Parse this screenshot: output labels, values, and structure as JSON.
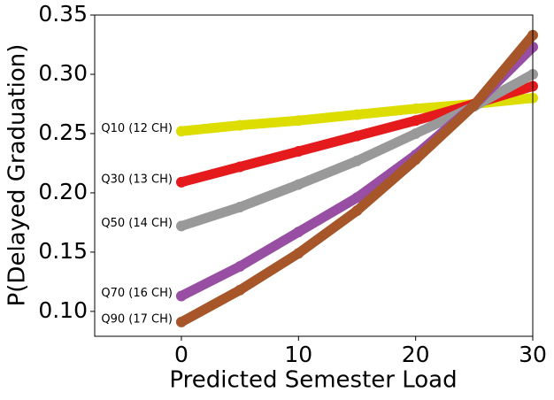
{
  "chart_data": {
    "type": "line",
    "x_label": "Predicted Semester Load",
    "y_label": "P(Delayed Graduation)",
    "x": [
      0,
      5,
      10,
      15,
      20,
      25,
      30
    ],
    "series": [
      {
        "name": "Q10 (12 CH)",
        "color": "#dddd00",
        "values": [
          0.252,
          0.257,
          0.261,
          0.266,
          0.271,
          0.275,
          0.28
        ]
      },
      {
        "name": "Q30 (13 CH)",
        "color": "#e41a1c",
        "values": [
          0.209,
          0.222,
          0.235,
          0.248,
          0.261,
          0.275,
          0.29
        ]
      },
      {
        "name": "Q50 (14 CH)",
        "color": "#999999",
        "values": [
          0.172,
          0.188,
          0.207,
          0.227,
          0.25,
          0.273,
          0.3
        ]
      },
      {
        "name": "Q70 (16 CH)",
        "color": "#984ea3",
        "values": [
          0.113,
          0.138,
          0.167,
          0.196,
          0.232,
          0.274,
          0.323
        ]
      },
      {
        "name": "Q90 (17 CH)",
        "color": "#a65628",
        "values": [
          0.091,
          0.118,
          0.149,
          0.185,
          0.228,
          0.274,
          0.333
        ]
      }
    ],
    "xlim": [
      -7.4,
      30
    ],
    "ylim": [
      0.079,
      0.35
    ],
    "xticks": [
      0,
      10,
      20,
      30
    ],
    "yticks": [
      {
        "value": 0.1,
        "label": "0.10"
      },
      0.15,
      {
        "value": 0.2,
        "label": "0.20"
      },
      0.25,
      {
        "value": 0.3,
        "label": "0.30"
      },
      0.35
    ],
    "grid": false
  }
}
